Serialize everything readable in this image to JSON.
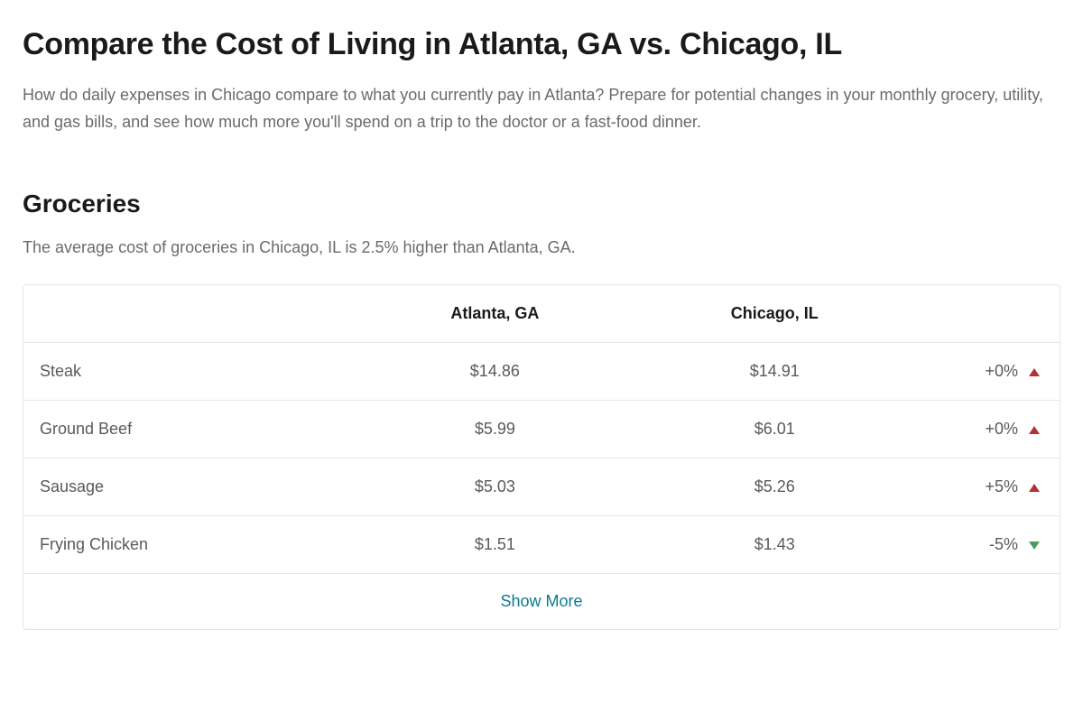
{
  "page": {
    "title": "Compare the Cost of Living in Atlanta, GA vs. Chicago, IL",
    "description": "How do daily expenses in Chicago compare to what you currently pay in Atlanta? Prepare for potential changes in your monthly grocery, utility, and gas bills, and see how much more you'll spend on a trip to the doctor or a fast-food dinner."
  },
  "section": {
    "title": "Groceries",
    "description": "The average cost of groceries in Chicago, IL is 2.5% higher than Atlanta, GA."
  },
  "table": {
    "columns": {
      "item": "",
      "city_a": "Atlanta, GA",
      "city_b": "Chicago, IL",
      "change": ""
    },
    "rows": [
      {
        "item": "Steak",
        "city_a": "$14.86",
        "city_b": "$14.91",
        "change": "+0%",
        "direction": "up"
      },
      {
        "item": "Ground Beef",
        "city_a": "$5.99",
        "city_b": "$6.01",
        "change": "+0%",
        "direction": "up"
      },
      {
        "item": "Sausage",
        "city_a": "$5.03",
        "city_b": "$5.26",
        "change": "+5%",
        "direction": "up"
      },
      {
        "item": "Frying Chicken",
        "city_a": "$1.51",
        "city_b": "$1.43",
        "change": "-5%",
        "direction": "down"
      }
    ],
    "show_more_label": "Show More"
  },
  "colors": {
    "up_triangle": "#b53030",
    "down_triangle": "#4a9d5f",
    "link": "#0d7a8f",
    "text_primary": "#1a1a1a",
    "text_secondary": "#6b6b6b",
    "border": "#e5e5e5",
    "background": "#ffffff"
  }
}
